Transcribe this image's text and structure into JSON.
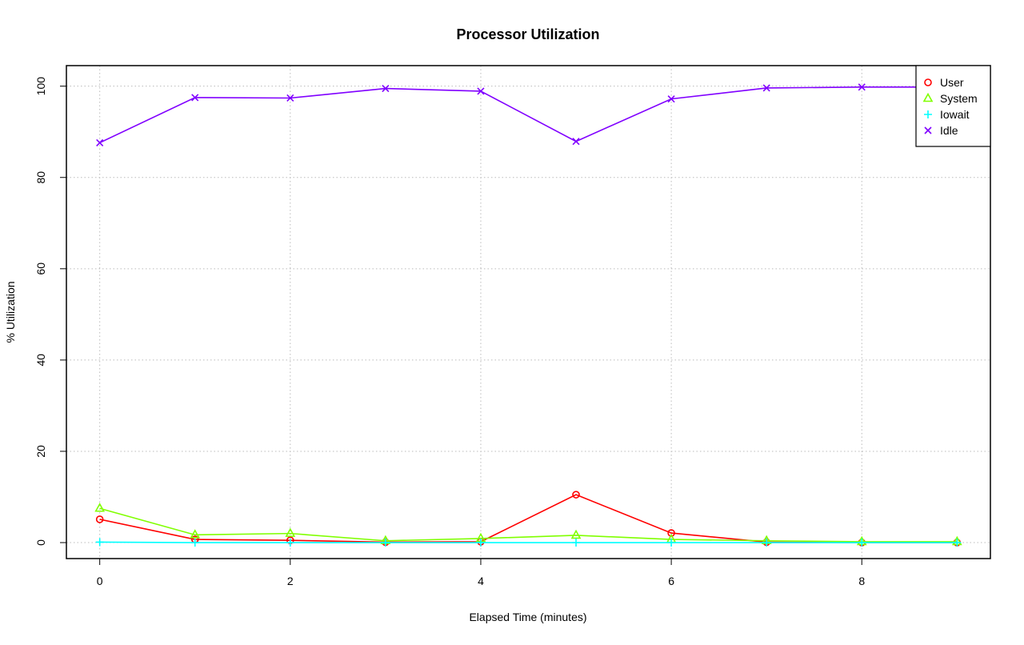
{
  "chart_data": {
    "type": "line",
    "title": "Processor Utilization",
    "xlabel": "Elapsed Time (minutes)",
    "ylabel": "% Utilization",
    "x": [
      0,
      1,
      2,
      3,
      4,
      5,
      6,
      7,
      8,
      9
    ],
    "xlim": [
      -0.35,
      9.35
    ],
    "ylim": [
      -3.5,
      104.5
    ],
    "xticks": [
      0,
      2,
      4,
      6,
      8
    ],
    "yticks": [
      0,
      20,
      40,
      60,
      80,
      100
    ],
    "grid": true,
    "legend_position": "top-right",
    "series": [
      {
        "name": "User",
        "color": "#FF0000",
        "marker": "circle",
        "values": [
          5.1,
          0.7,
          0.5,
          0.1,
          0.2,
          10.5,
          2.1,
          0.1,
          0.0,
          0.0
        ]
      },
      {
        "name": "System",
        "color": "#80FF00",
        "marker": "triangle",
        "values": [
          7.5,
          1.7,
          2.0,
          0.4,
          0.9,
          1.6,
          0.7,
          0.4,
          0.2,
          0.2
        ]
      },
      {
        "name": "Iowait",
        "color": "#00FFFF",
        "marker": "plus",
        "values": [
          0.1,
          0.0,
          0.0,
          0.0,
          0.0,
          0.0,
          0.0,
          0.0,
          0.0,
          0.0
        ]
      },
      {
        "name": "Idle",
        "color": "#8000FF",
        "marker": "x",
        "values": [
          87.6,
          97.5,
          97.4,
          99.5,
          98.9,
          87.9,
          97.2,
          99.6,
          99.8,
          99.8
        ]
      }
    ]
  }
}
